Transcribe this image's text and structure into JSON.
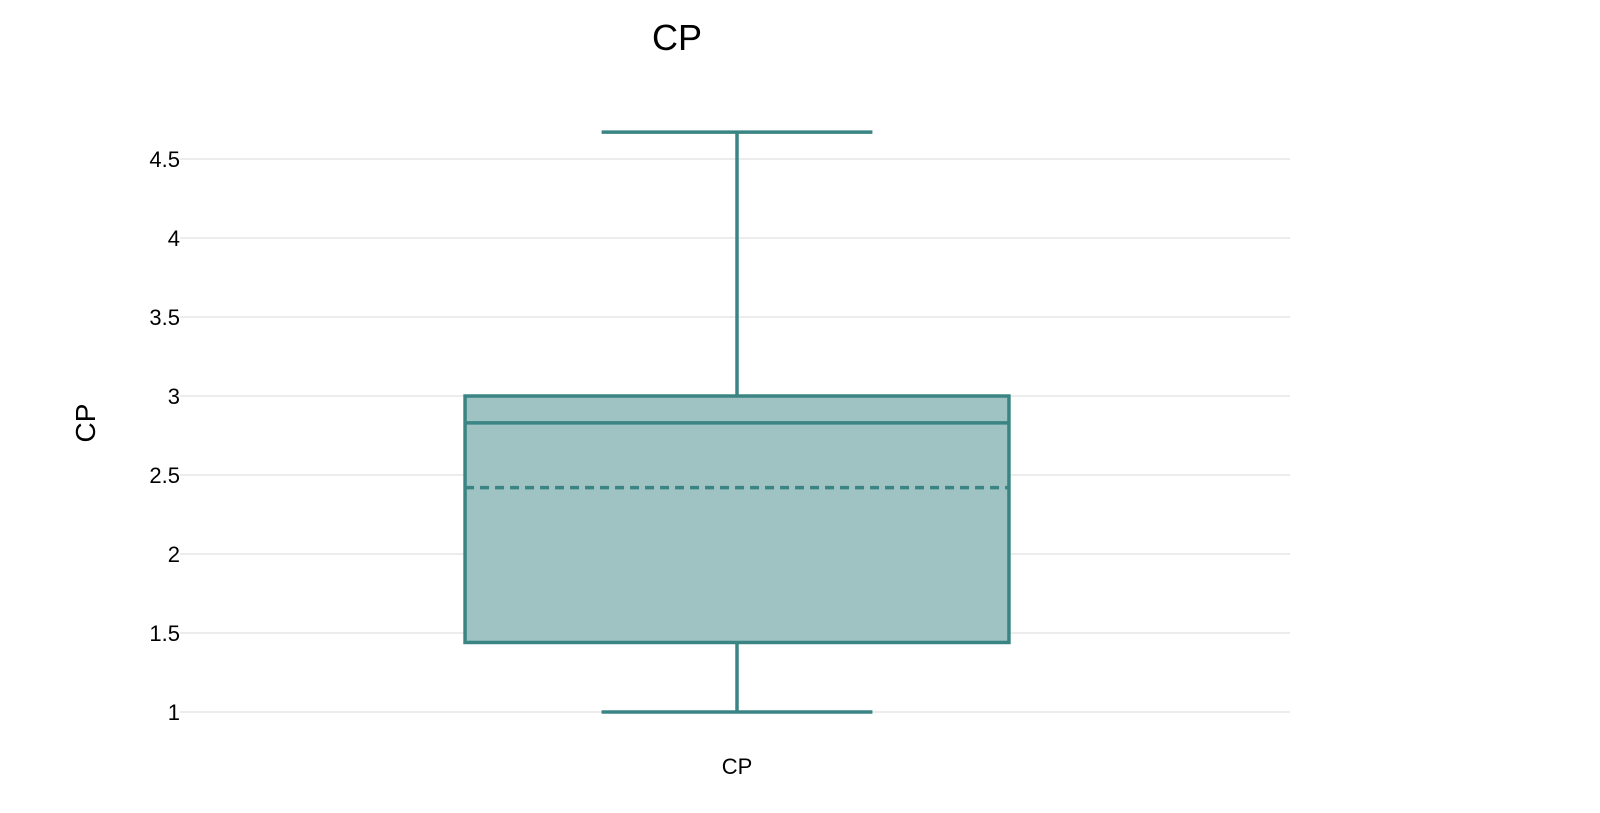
{
  "chart_data": {
    "type": "box",
    "title": "CP",
    "xlabel": "",
    "ylabel": "CP",
    "ylim": [
      0.9,
      4.75
    ],
    "yticks": [
      1,
      1.5,
      2,
      2.5,
      3,
      3.5,
      4,
      4.5
    ],
    "ytick_labels": [
      "1",
      "1.5",
      "2",
      "2.5",
      "3",
      "3.5",
      "4",
      "4.5"
    ],
    "grid": true,
    "categories": [
      "CP"
    ],
    "series": [
      {
        "category": "CP",
        "min": 1.0,
        "q1": 1.44,
        "median": 2.83,
        "mean": 2.42,
        "q3": 3.0,
        "max": 4.67
      }
    ],
    "colors": {
      "stroke": "#3a8583",
      "fill": "#9fc3c3",
      "grid": "#e6e6e6"
    }
  }
}
